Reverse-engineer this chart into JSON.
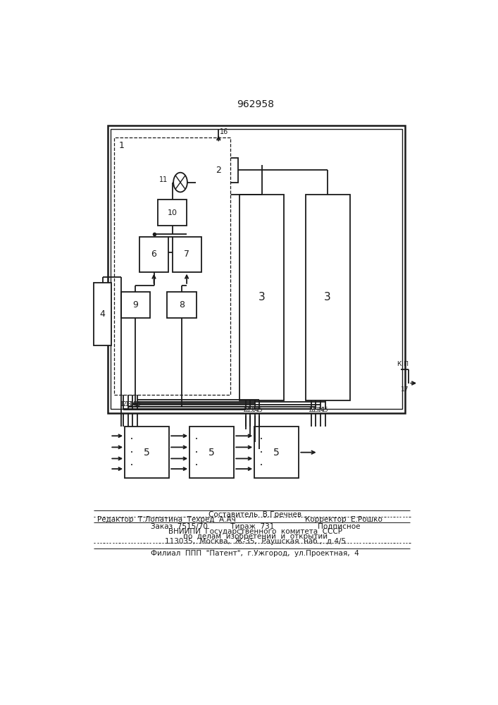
{
  "title": "962958",
  "bg_color": "#ffffff",
  "line_color": "#1a1a1a",
  "lw": 1.3,
  "footer": {
    "line1": "Составитель  В.Гречнев",
    "line2a": "Редактор  Т.Лопатина  Техред  А.Ач",
    "line2b": "Корректор  Е.Рошко",
    "line3": "Заказ  7515/70          Тираж  731                   Подписное",
    "line4": "ВНИИПИ  Государственного  комитета  СССР",
    "line5": "по  делам  изобретений  и  открытий",
    "line6": "113035,  Москва,  Ж-35,  Раушская  наб.,  д.4/5",
    "line7": "Филиал  ППП  \"Патент\",  г.Ужгород,  ул.Проектная,  4"
  }
}
